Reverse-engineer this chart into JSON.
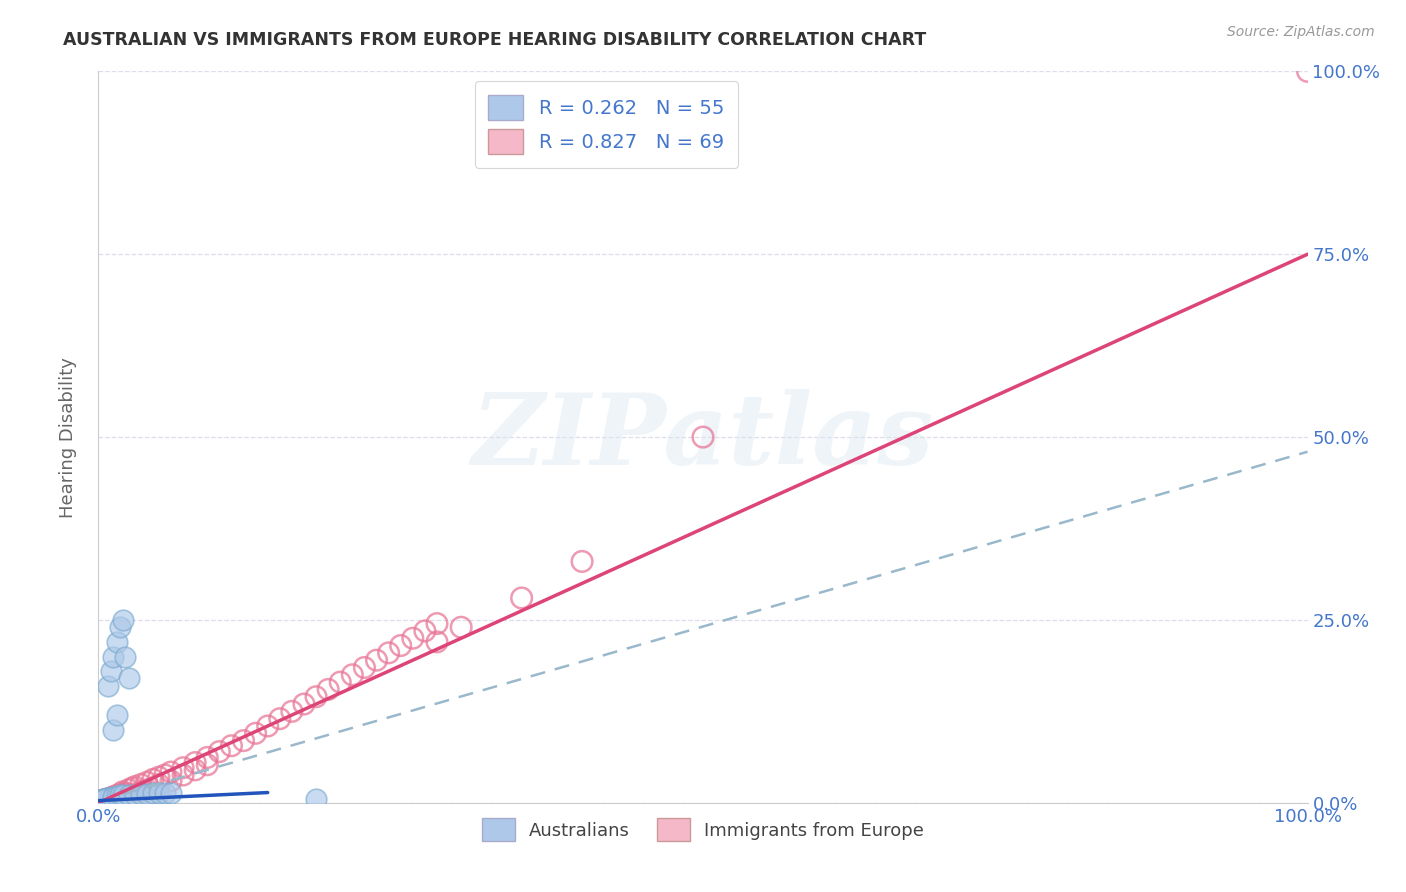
{
  "title": "AUSTRALIAN VS IMMIGRANTS FROM EUROPE HEARING DISABILITY CORRELATION CHART",
  "source": "Source: ZipAtlas.com",
  "ylabel": "Hearing Disability",
  "xlim": [
    0.0,
    1.0
  ],
  "ylim": [
    0.0,
    1.0
  ],
  "ytick_positions": [
    0.0,
    0.25,
    0.5,
    0.75,
    1.0
  ],
  "ytick_labels_right": [
    "0.0%",
    "25.0%",
    "50.0%",
    "75.0%",
    "100.0%"
  ],
  "xtick_positions": [
    0.0,
    0.25,
    0.5,
    0.75,
    1.0
  ],
  "xtick_labels": [
    "0.0%",
    "",
    "",
    "",
    "100.0%"
  ],
  "watermark_text": "ZIPatlas",
  "legend_r1": "R = 0.262",
  "legend_n1": "N = 55",
  "legend_r2": "R = 0.827",
  "legend_n2": "N = 69",
  "color_aus_fill": "#adc8e8",
  "color_aus_edge": "#7aaad0",
  "color_eur_fill": "#f5b8c8",
  "color_eur_edge": "#e87898",
  "color_line_aus": "#2255bb",
  "color_line_eur": "#dd4477",
  "color_dashed": "#99b8cc",
  "color_axis_blue": "#4477cc",
  "color_title": "#333333",
  "color_source": "#999999",
  "background_color": "#ffffff",
  "grid_color": "#ddddee",
  "aus_x": [
    0.002,
    0.003,
    0.004,
    0.005,
    0.006,
    0.007,
    0.008,
    0.009,
    0.01,
    0.002,
    0.003,
    0.004,
    0.005,
    0.006,
    0.007,
    0.008,
    0.009,
    0.01,
    0.002,
    0.003,
    0.004,
    0.005,
    0.006,
    0.007,
    0.008,
    0.009,
    0.01,
    0.001,
    0.002,
    0.003,
    0.004,
    0.005,
    0.012,
    0.015,
    0.018,
    0.02,
    0.025,
    0.03,
    0.035,
    0.04,
    0.045,
    0.05,
    0.055,
    0.06,
    0.008,
    0.01,
    0.012,
    0.015,
    0.018,
    0.02,
    0.022,
    0.025,
    0.012,
    0.015,
    0.18
  ],
  "aus_y": [
    0.002,
    0.003,
    0.003,
    0.004,
    0.004,
    0.003,
    0.004,
    0.005,
    0.004,
    0.002,
    0.003,
    0.004,
    0.003,
    0.004,
    0.005,
    0.006,
    0.004,
    0.005,
    0.003,
    0.004,
    0.005,
    0.004,
    0.005,
    0.006,
    0.005,
    0.006,
    0.007,
    0.002,
    0.003,
    0.003,
    0.004,
    0.005,
    0.008,
    0.009,
    0.01,
    0.01,
    0.01,
    0.011,
    0.012,
    0.012,
    0.013,
    0.013,
    0.014,
    0.014,
    0.16,
    0.18,
    0.2,
    0.22,
    0.24,
    0.25,
    0.2,
    0.17,
    0.1,
    0.12,
    0.005
  ],
  "eur_x": [
    0.002,
    0.003,
    0.004,
    0.005,
    0.006,
    0.007,
    0.008,
    0.009,
    0.01,
    0.012,
    0.015,
    0.018,
    0.02,
    0.022,
    0.025,
    0.028,
    0.03,
    0.035,
    0.04,
    0.045,
    0.05,
    0.055,
    0.06,
    0.07,
    0.08,
    0.09,
    0.1,
    0.11,
    0.12,
    0.13,
    0.14,
    0.15,
    0.16,
    0.17,
    0.18,
    0.19,
    0.2,
    0.21,
    0.22,
    0.23,
    0.24,
    0.25,
    0.26,
    0.27,
    0.28,
    0.002,
    0.004,
    0.006,
    0.008,
    0.01,
    0.012,
    0.015,
    0.018,
    0.02,
    0.025,
    0.03,
    0.035,
    0.04,
    0.05,
    0.06,
    0.07,
    0.08,
    0.09,
    0.28,
    0.3,
    0.35,
    0.4,
    0.5,
    1.0
  ],
  "eur_y": [
    0.002,
    0.003,
    0.003,
    0.004,
    0.003,
    0.005,
    0.004,
    0.006,
    0.005,
    0.008,
    0.01,
    0.012,
    0.015,
    0.013,
    0.018,
    0.02,
    0.022,
    0.025,
    0.028,
    0.032,
    0.035,
    0.038,
    0.042,
    0.048,
    0.055,
    0.062,
    0.07,
    0.078,
    0.085,
    0.095,
    0.105,
    0.115,
    0.125,
    0.135,
    0.145,
    0.155,
    0.165,
    0.175,
    0.185,
    0.195,
    0.205,
    0.215,
    0.225,
    0.235,
    0.245,
    0.002,
    0.003,
    0.004,
    0.003,
    0.005,
    0.004,
    0.006,
    0.005,
    0.007,
    0.01,
    0.012,
    0.015,
    0.018,
    0.025,
    0.03,
    0.038,
    0.045,
    0.052,
    0.22,
    0.24,
    0.28,
    0.33,
    0.5,
    1.0
  ],
  "aus_line_x": [
    0.0,
    0.14
  ],
  "aus_line_y": [
    0.003,
    0.014
  ],
  "eur_line_x": [
    0.0,
    1.0
  ],
  "eur_line_y": [
    0.0,
    0.75
  ],
  "dash_line_x": [
    0.0,
    1.0
  ],
  "dash_line_y": [
    0.002,
    0.48
  ]
}
